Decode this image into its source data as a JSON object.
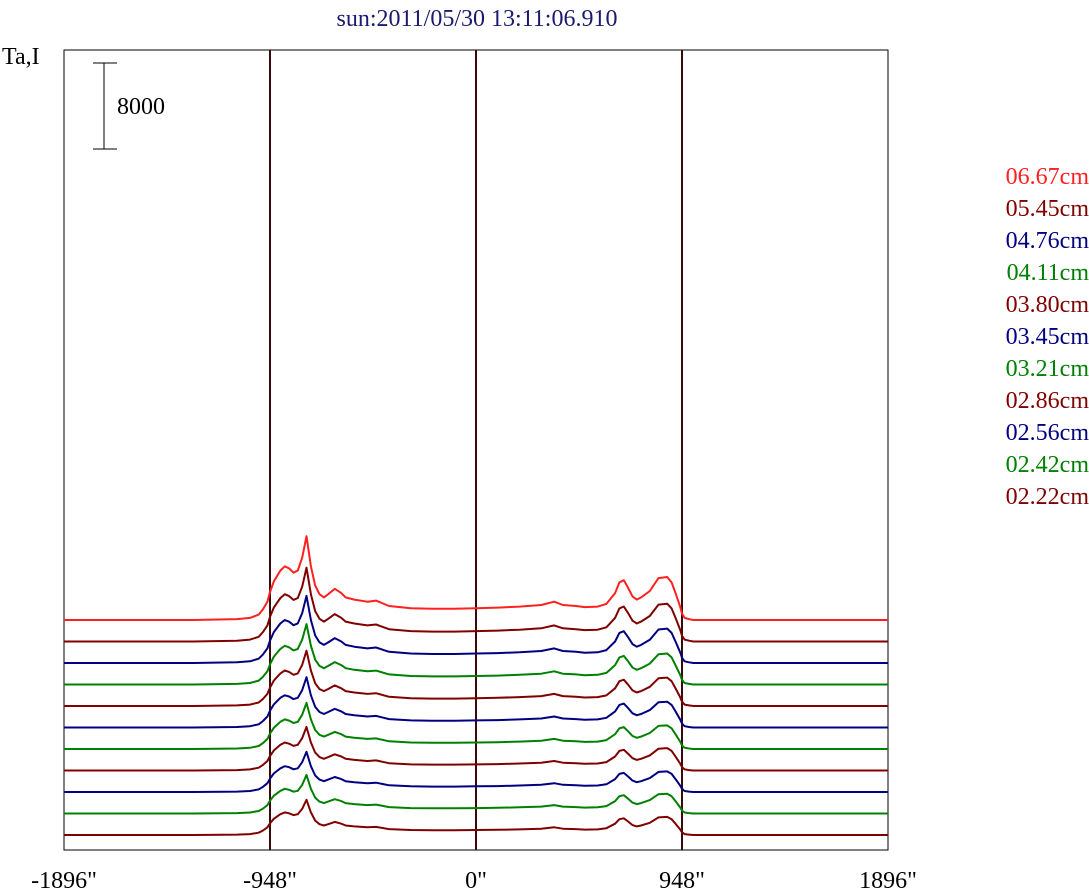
{
  "chart_data": {
    "type": "line",
    "title": "sun:2011/05/30 13:11:06.910",
    "ylabel": "Ta,I",
    "scale_bar_label": "8000",
    "x_unit": "arcsec",
    "xlim": [
      -1896,
      1896
    ],
    "x_ticks": [
      -1896,
      -948,
      0,
      948,
      1896
    ],
    "x_tick_labels": [
      "-1896\"",
      "-948\"",
      "0\"",
      "948\"",
      "1896\""
    ],
    "reference_lines_x": [
      -948,
      0,
      948
    ],
    "series_offset_step": 2000,
    "series": [
      {
        "name": "06.67cm",
        "color": "#ff2020",
        "offset": 20000,
        "amp": 1.0
      },
      {
        "name": "05.45cm",
        "color": "#800000",
        "offset": 18000,
        "amp": 0.88
      },
      {
        "name": "04.76cm",
        "color": "#000080",
        "offset": 16000,
        "amp": 0.8
      },
      {
        "name": "04.11cm",
        "color": "#008000",
        "offset": 14000,
        "amp": 0.72
      },
      {
        "name": "03.80cm",
        "color": "#800000",
        "offset": 12000,
        "amp": 0.66
      },
      {
        "name": "03.45cm",
        "color": "#000080",
        "offset": 10000,
        "amp": 0.6
      },
      {
        "name": "03.21cm",
        "color": "#008000",
        "offset": 8000,
        "amp": 0.55
      },
      {
        "name": "02.86cm",
        "color": "#800000",
        "offset": 6000,
        "amp": 0.52
      },
      {
        "name": "02.56cm",
        "color": "#000080",
        "offset": 4000,
        "amp": 0.48
      },
      {
        "name": "02.42cm",
        "color": "#008000",
        "offset": 2000,
        "amp": 0.46
      },
      {
        "name": "02.22cm",
        "color": "#800000",
        "offset": 0,
        "amp": 0.42
      }
    ],
    "profile_x": [
      -1896,
      -1300,
      -1100,
      -1040,
      -1000,
      -980,
      -960,
      -948,
      -930,
      -900,
      -880,
      -860,
      -840,
      -820,
      -800,
      -780,
      -760,
      -740,
      -720,
      -700,
      -680,
      -650,
      -620,
      -600,
      -560,
      -500,
      -460,
      -400,
      -300,
      -200,
      -100,
      0,
      100,
      200,
      300,
      360,
      400,
      460,
      500,
      560,
      600,
      640,
      660,
      680,
      700,
      720,
      740,
      760,
      800,
      840,
      880,
      900,
      920,
      940,
      948,
      960,
      980,
      1000,
      1100,
      1400,
      1896
    ],
    "profile_y": [
      0,
      0,
      80,
      200,
      500,
      1000,
      1700,
      2600,
      3600,
      4600,
      5000,
      4800,
      4400,
      4600,
      5800,
      7800,
      5000,
      3200,
      2400,
      2100,
      2400,
      2900,
      2500,
      2100,
      1900,
      1700,
      1800,
      1300,
      1100,
      1050,
      1050,
      1100,
      1150,
      1250,
      1400,
      1700,
      1400,
      1300,
      1200,
      1250,
      1500,
      2500,
      3500,
      3700,
      3000,
      2200,
      1900,
      2100,
      2700,
      3900,
      4000,
      3500,
      2400,
      1200,
      600,
      200,
      80,
      0,
      0,
      0,
      0
    ]
  }
}
